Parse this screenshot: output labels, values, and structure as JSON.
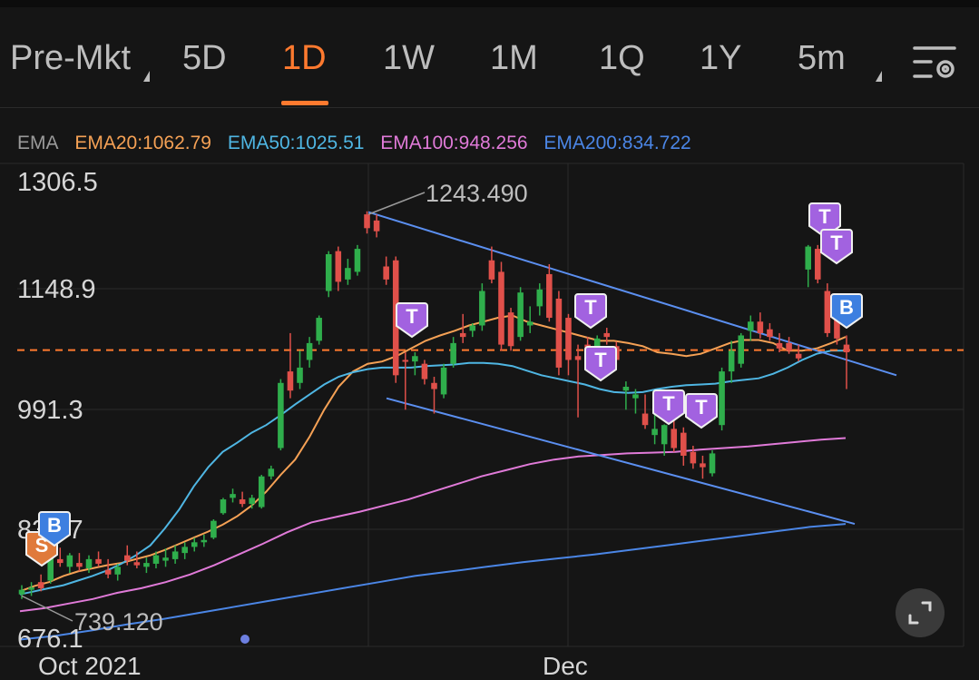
{
  "tabs": [
    {
      "label": "Pre-Mkt",
      "dropdown": true,
      "active": false
    },
    {
      "label": "5D",
      "active": false
    },
    {
      "label": "1D",
      "active": true
    },
    {
      "label": "1W",
      "active": false
    },
    {
      "label": "1M",
      "active": false
    },
    {
      "label": "1Q",
      "active": false
    },
    {
      "label": "1Y",
      "active": false
    },
    {
      "label": "5m",
      "dropdown": true,
      "active": false
    }
  ],
  "icons": {
    "settings": "chart-settings-icon",
    "fullscreen": "fullscreen-icon"
  },
  "legend": {
    "label": "EMA",
    "items": [
      {
        "text": "EMA20:1062.79",
        "color": "#f5a155"
      },
      {
        "text": "EMA50:1025.51",
        "color": "#4fb6e3"
      },
      {
        "text": "EMA100:948.256",
        "color": "#e07ad8"
      },
      {
        "text": "EMA200:834.722",
        "color": "#4b86e6"
      }
    ]
  },
  "colors": {
    "up": "#2fae4c",
    "down": "#e0504a",
    "accent": "#ff7a2f",
    "trendline": "#5b8ff0",
    "marker_t": "#a262e0",
    "marker_b": "#3d7fe0",
    "marker_s": "#e07a3b"
  },
  "chart_data": {
    "type": "candlestick",
    "y_ticks": [
      "1306.5",
      "1148.9",
      "991.3",
      "838.7",
      "676.1"
    ],
    "ylim": [
      676.1,
      1306.5
    ],
    "x_ticks": [
      "Oct 2021",
      "Dec"
    ],
    "high_label": "1243.490",
    "low_label": "739.120",
    "reference_price": 1062.79,
    "candles": [
      {
        "o": 744,
        "h": 756,
        "l": 738,
        "c": 750
      },
      {
        "o": 750,
        "h": 760,
        "l": 742,
        "c": 753
      },
      {
        "o": 760,
        "h": 770,
        "l": 748,
        "c": 752
      },
      {
        "o": 762,
        "h": 800,
        "l": 758,
        "c": 793
      },
      {
        "o": 790,
        "h": 805,
        "l": 780,
        "c": 785
      },
      {
        "o": 780,
        "h": 798,
        "l": 772,
        "c": 795
      },
      {
        "o": 785,
        "h": 798,
        "l": 774,
        "c": 780
      },
      {
        "o": 778,
        "h": 795,
        "l": 772,
        "c": 790
      },
      {
        "o": 790,
        "h": 800,
        "l": 780,
        "c": 784
      },
      {
        "o": 776,
        "h": 790,
        "l": 765,
        "c": 770
      },
      {
        "o": 770,
        "h": 784,
        "l": 762,
        "c": 780
      },
      {
        "o": 795,
        "h": 808,
        "l": 782,
        "c": 788
      },
      {
        "o": 786,
        "h": 800,
        "l": 778,
        "c": 782
      },
      {
        "o": 780,
        "h": 792,
        "l": 772,
        "c": 785
      },
      {
        "o": 784,
        "h": 800,
        "l": 778,
        "c": 795
      },
      {
        "o": 788,
        "h": 804,
        "l": 780,
        "c": 792
      },
      {
        "o": 790,
        "h": 808,
        "l": 784,
        "c": 800
      },
      {
        "o": 798,
        "h": 812,
        "l": 790,
        "c": 806
      },
      {
        "o": 806,
        "h": 818,
        "l": 800,
        "c": 812
      },
      {
        "o": 812,
        "h": 822,
        "l": 806,
        "c": 815
      },
      {
        "o": 818,
        "h": 842,
        "l": 816,
        "c": 840
      },
      {
        "o": 850,
        "h": 870,
        "l": 848,
        "c": 868
      },
      {
        "o": 870,
        "h": 882,
        "l": 864,
        "c": 875
      },
      {
        "o": 868,
        "h": 878,
        "l": 858,
        "c": 862
      },
      {
        "o": 862,
        "h": 874,
        "l": 856,
        "c": 870
      },
      {
        "o": 858,
        "h": 900,
        "l": 856,
        "c": 898
      },
      {
        "o": 898,
        "h": 912,
        "l": 894,
        "c": 908
      },
      {
        "o": 935,
        "h": 1025,
        "l": 932,
        "c": 1020
      },
      {
        "o": 1035,
        "h": 1085,
        "l": 1000,
        "c": 1010
      },
      {
        "o": 1020,
        "h": 1062,
        "l": 1012,
        "c": 1040
      },
      {
        "o": 1050,
        "h": 1080,
        "l": 1040,
        "c": 1072
      },
      {
        "o": 1075,
        "h": 1108,
        "l": 1070,
        "c": 1105
      },
      {
        "o": 1140,
        "h": 1192,
        "l": 1132,
        "c": 1188
      },
      {
        "o": 1192,
        "h": 1198,
        "l": 1140,
        "c": 1152
      },
      {
        "o": 1155,
        "h": 1182,
        "l": 1148,
        "c": 1170
      },
      {
        "o": 1165,
        "h": 1200,
        "l": 1160,
        "c": 1195
      },
      {
        "o": 1240,
        "h": 1244,
        "l": 1215,
        "c": 1222
      },
      {
        "o": 1232,
        "h": 1240,
        "l": 1210,
        "c": 1218
      },
      {
        "o": 1172,
        "h": 1185,
        "l": 1148,
        "c": 1155
      },
      {
        "o": 1180,
        "h": 1185,
        "l": 1020,
        "c": 1030
      },
      {
        "o": 1050,
        "h": 1060,
        "l": 985,
        "c": 1048
      },
      {
        "o": 1048,
        "h": 1060,
        "l": 1030,
        "c": 1055
      },
      {
        "o": 1045,
        "h": 1050,
        "l": 1018,
        "c": 1025
      },
      {
        "o": 1020,
        "h": 1028,
        "l": 980,
        "c": 1012
      },
      {
        "o": 1005,
        "h": 1045,
        "l": 1000,
        "c": 1040
      },
      {
        "o": 1045,
        "h": 1080,
        "l": 1040,
        "c": 1072
      },
      {
        "o": 1085,
        "h": 1110,
        "l": 1072,
        "c": 1080
      },
      {
        "o": 1088,
        "h": 1098,
        "l": 1080,
        "c": 1095
      },
      {
        "o": 1095,
        "h": 1150,
        "l": 1088,
        "c": 1140
      },
      {
        "o": 1180,
        "h": 1198,
        "l": 1150,
        "c": 1155
      },
      {
        "o": 1165,
        "h": 1178,
        "l": 1062,
        "c": 1070
      },
      {
        "o": 1112,
        "h": 1118,
        "l": 1062,
        "c": 1068
      },
      {
        "o": 1080,
        "h": 1145,
        "l": 1075,
        "c": 1138
      },
      {
        "o": 1095,
        "h": 1120,
        "l": 1085,
        "c": 1100
      },
      {
        "o": 1120,
        "h": 1150,
        "l": 1108,
        "c": 1142
      },
      {
        "o": 1162,
        "h": 1175,
        "l": 1100,
        "c": 1105
      },
      {
        "o": 1130,
        "h": 1140,
        "l": 1030,
        "c": 1040
      },
      {
        "o": 1105,
        "h": 1110,
        "l": 1030,
        "c": 1050
      },
      {
        "o": 1055,
        "h": 1070,
        "l": 975,
        "c": 1050
      },
      {
        "o": 1070,
        "h": 1080,
        "l": 1035,
        "c": 1042
      },
      {
        "o": 1055,
        "h": 1082,
        "l": 1050,
        "c": 1078
      },
      {
        "o": 1085,
        "h": 1092,
        "l": 1070,
        "c": 1080
      },
      {
        "o": 1068,
        "h": 1074,
        "l": 1040,
        "c": 1050
      },
      {
        "o": 1010,
        "h": 1022,
        "l": 985,
        "c": 1015
      },
      {
        "o": 1000,
        "h": 1012,
        "l": 980,
        "c": 1005
      },
      {
        "o": 980,
        "h": 1005,
        "l": 960,
        "c": 965
      },
      {
        "o": 952,
        "h": 978,
        "l": 940,
        "c": 960
      },
      {
        "o": 940,
        "h": 966,
        "l": 925,
        "c": 965
      },
      {
        "o": 960,
        "h": 1000,
        "l": 930,
        "c": 935
      },
      {
        "o": 955,
        "h": 962,
        "l": 912,
        "c": 925
      },
      {
        "o": 930,
        "h": 938,
        "l": 908,
        "c": 915
      },
      {
        "o": 915,
        "h": 925,
        "l": 895,
        "c": 910
      },
      {
        "o": 902,
        "h": 932,
        "l": 898,
        "c": 928
      },
      {
        "o": 965,
        "h": 1040,
        "l": 958,
        "c": 1035
      },
      {
        "o": 1035,
        "h": 1075,
        "l": 1020,
        "c": 1062
      },
      {
        "o": 1045,
        "h": 1085,
        "l": 1040,
        "c": 1082
      },
      {
        "o": 1088,
        "h": 1108,
        "l": 1075,
        "c": 1100
      },
      {
        "o": 1100,
        "h": 1112,
        "l": 1078,
        "c": 1085
      },
      {
        "o": 1090,
        "h": 1098,
        "l": 1075,
        "c": 1080
      },
      {
        "o": 1072,
        "h": 1085,
        "l": 1060,
        "c": 1065
      },
      {
        "o": 1072,
        "h": 1080,
        "l": 1058,
        "c": 1062
      },
      {
        "o": 1058,
        "h": 1070,
        "l": 1048,
        "c": 1052
      },
      {
        "o": 1168,
        "h": 1200,
        "l": 1145,
        "c": 1198
      },
      {
        "o": 1195,
        "h": 1200,
        "l": 1150,
        "c": 1155
      },
      {
        "o": 1140,
        "h": 1150,
        "l": 1080,
        "c": 1085
      },
      {
        "o": 1110,
        "h": 1125,
        "l": 1070,
        "c": 1078
      },
      {
        "o": 1070,
        "h": 1082,
        "l": 1012,
        "c": 1060
      }
    ],
    "series": [
      {
        "name": "EMA20",
        "values": [
          748,
          755,
          760,
          768,
          774,
          778,
          782,
          785,
          790,
          795,
          802,
          810,
          818,
          826,
          835,
          846,
          860,
          878,
          900,
          920,
          950,
          985,
          1015,
          1035,
          1045,
          1048,
          1055,
          1065,
          1075,
          1082,
          1088,
          1095,
          1100,
          1105,
          1108,
          1100,
          1095,
          1090,
          1085,
          1080,
          1075,
          1075,
          1072,
          1068,
          1060,
          1058,
          1055,
          1058,
          1065,
          1072,
          1076,
          1076,
          1072,
          1062,
          1062,
          1065,
          1072,
          1080
        ]
      },
      {
        "name": "EMA50",
        "values": [
          744,
          748,
          752,
          756,
          762,
          768,
          775,
          784,
          795,
          808,
          830,
          855,
          885,
          910,
          930,
          942,
          955,
          965,
          978,
          992,
          1005,
          1018,
          1028,
          1034,
          1038,
          1040,
          1040,
          1040,
          1042,
          1043,
          1044,
          1046,
          1046,
          1045,
          1042,
          1036,
          1030,
          1026,
          1022,
          1018,
          1012,
          1008,
          1007,
          1008,
          1012,
          1015,
          1017,
          1018,
          1019,
          1022,
          1024,
          1026,
          1032,
          1040,
          1050,
          1058,
          1062,
          1062
        ]
      },
      {
        "name": "EMA100",
        "values": [
          722,
          726,
          732,
          738,
          746,
          752,
          760,
          770,
          782,
          796,
          810,
          825,
          838,
          845,
          852,
          860,
          868,
          878,
          888,
          898,
          906,
          914,
          920,
          924,
          926,
          928,
          929,
          930,
          933,
          935,
          937,
          940,
          943,
          946,
          948
        ]
      },
      {
        "name": "EMA200",
        "values": [
          685,
          690,
          697,
          705,
          712,
          720,
          728,
          736,
          744,
          752,
          760,
          768,
          774,
          780,
          786,
          791,
          796,
          802,
          808,
          814,
          820,
          826,
          832,
          836
        ]
      }
    ],
    "trendlines": [
      {
        "from": [
          1240,
          1238
        ],
        "to": [
          1079,
          1030
        ]
      },
      {
        "from": [
          1000,
          1235
        ],
        "to": [
          816,
          833
        ]
      }
    ],
    "markers": [
      "S",
      "B",
      "T",
      "T",
      "T",
      "T",
      "T",
      "T",
      "T",
      "B"
    ]
  }
}
